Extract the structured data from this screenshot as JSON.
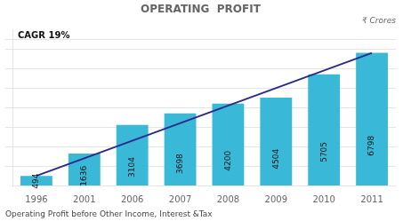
{
  "chart_data": {
    "type": "bar",
    "title": "OPERATING  PROFIT",
    "subtitle": "₹ Crores",
    "annotations": [
      "CAGR 19%",
      "Operating Profit before Other Income, Interest &Tax"
    ],
    "categories": [
      "1996",
      "2001",
      "2006",
      "2007",
      "2008",
      "2009",
      "2010",
      "2011"
    ],
    "series": [
      {
        "type": "bar",
        "color": "#3ab8d8",
        "values": [
          494,
          1636,
          3104,
          3698,
          4200,
          4504,
          5705,
          6798
        ],
        "data_labels": true
      },
      {
        "type": "line",
        "color": "#2a2a8c",
        "values": [
          494,
          null,
          null,
          null,
          null,
          null,
          null,
          6798
        ]
      }
    ],
    "ylim": [
      0,
      8000
    ],
    "yticks": [
      1000,
      2000,
      3000,
      4000,
      5000,
      6000,
      7000,
      7500
    ],
    "grid": true,
    "tick_labels": "x"
  }
}
